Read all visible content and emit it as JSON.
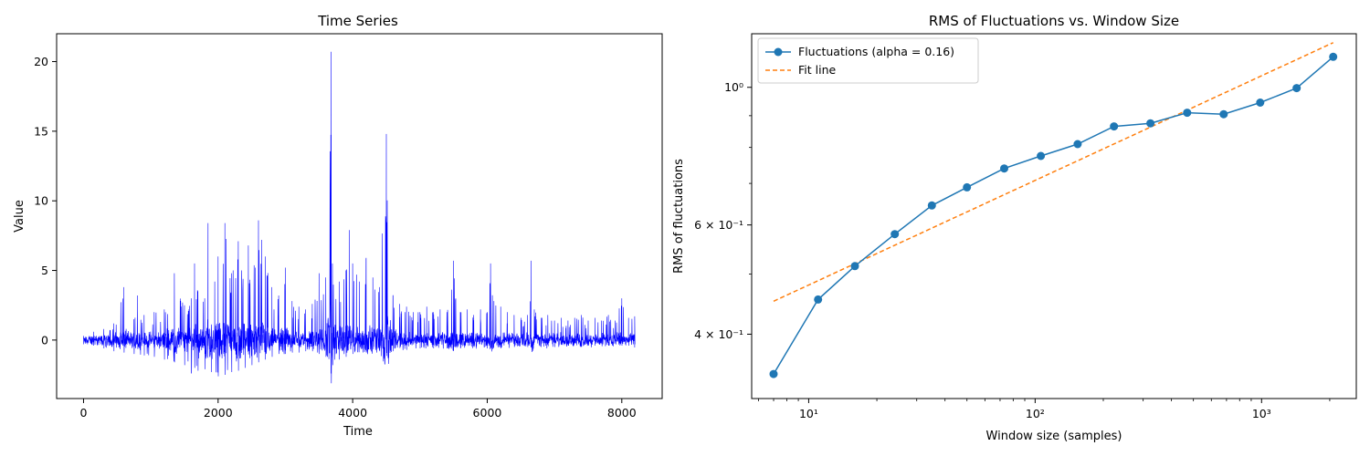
{
  "chart_data": [
    {
      "type": "line",
      "title": "Time Series",
      "xlabel": "Time",
      "ylabel": "Value",
      "xlim": [
        -400,
        8600
      ],
      "ylim": [
        -4.2,
        22
      ],
      "xticks": [
        0,
        2000,
        4000,
        6000,
        8000
      ],
      "yticks": [
        0,
        5,
        10,
        15,
        20
      ],
      "n_points": 8192,
      "color": "#0000ff",
      "series": [
        {
          "x": [
            0,
            150,
            300,
            450,
            600,
            750,
            800,
            900,
            1050,
            1200,
            1350,
            1500,
            1600,
            1650,
            1700,
            1800,
            1850,
            1950,
            2000,
            2100,
            2200,
            2300,
            2350,
            2450,
            2550,
            2600,
            2650,
            2700,
            2800,
            2900,
            3000,
            3100,
            3200,
            3300,
            3400,
            3500,
            3600,
            3680,
            3700,
            3800,
            3900,
            3950,
            4000,
            4100,
            4200,
            4300,
            4400,
            4500,
            4600,
            4700,
            4800,
            4900,
            5000,
            5100,
            5200,
            5300,
            5400,
            5500,
            5600,
            5700,
            5800,
            5900,
            6000,
            6050,
            6100,
            6200,
            6300,
            6400,
            6500,
            6600,
            6650,
            6700,
            6800,
            6900,
            7000,
            7100,
            7200,
            7300,
            7400,
            7500,
            7600,
            7700,
            7800,
            7900,
            8000,
            8100,
            8192
          ],
          "y": [
            0.3,
            0.6,
            0.8,
            1.2,
            3.8,
            1.5,
            3.2,
            1.8,
            2.0,
            2.2,
            4.8,
            2.5,
            3.0,
            5.5,
            3.5,
            3.0,
            8.4,
            4.2,
            6.0,
            8.4,
            4.8,
            7.1,
            5.0,
            6.8,
            5.2,
            8.6,
            7.2,
            6.0,
            3.8,
            3.2,
            5.2,
            2.8,
            2.4,
            2.2,
            2.6,
            4.8,
            4.5,
            20.7,
            5.5,
            4.2,
            5.0,
            7.9,
            5.5,
            4.2,
            5.9,
            4.5,
            3.8,
            14.8,
            3.2,
            2.6,
            2.4,
            2.0,
            2.0,
            2.4,
            2.0,
            2.2,
            2.0,
            5.7,
            2.0,
            2.2,
            1.8,
            2.2,
            2.0,
            5.5,
            2.8,
            2.4,
            2.0,
            1.8,
            1.6,
            1.8,
            5.7,
            2.2,
            1.6,
            1.8,
            1.4,
            1.6,
            1.4,
            1.6,
            1.8,
            1.4,
            1.6,
            1.4,
            1.8,
            1.4,
            3.0,
            1.6,
            1.7
          ]
        },
        {
          "x": [
            0,
            150,
            300,
            450,
            600,
            750,
            900,
            1050,
            1200,
            1350,
            1500,
            1600,
            1650,
            1700,
            1800,
            1900,
            2000,
            2100,
            2200,
            2300,
            2400,
            2500,
            2600,
            2700,
            2800,
            2900,
            3000,
            3100,
            3200,
            3300,
            3400,
            3500,
            3600,
            3680,
            3700,
            3800,
            3900,
            4000,
            4200,
            4400,
            4600,
            4800,
            5000,
            5200,
            5400,
            5600,
            5800,
            6000,
            6200,
            6400,
            6600,
            6800,
            7000,
            7200,
            7400,
            7600,
            7800,
            8000,
            8192
          ],
          "y": [
            -0.3,
            -0.4,
            -0.6,
            -0.8,
            -0.9,
            -1.0,
            -1.1,
            -1.2,
            -1.4,
            -1.6,
            -1.8,
            -2.4,
            -2.0,
            -2.2,
            -2.1,
            -2.3,
            -2.6,
            -2.5,
            -2.3,
            -2.2,
            -2.0,
            -1.8,
            -1.6,
            -1.4,
            -1.2,
            -1.0,
            -1.0,
            -0.9,
            -0.9,
            -0.8,
            -0.8,
            -1.0,
            -1.2,
            -3.1,
            -1.8,
            -1.4,
            -1.2,
            -1.0,
            -0.9,
            -0.8,
            -0.8,
            -0.7,
            -0.6,
            -0.6,
            -0.6,
            -0.6,
            -0.5,
            -0.6,
            -0.6,
            -0.5,
            -0.5,
            -0.5,
            -0.5,
            -0.4,
            -0.5,
            -0.4,
            -0.4,
            -0.4,
            -0.3
          ]
        }
      ]
    },
    {
      "type": "line",
      "title": "RMS of Fluctuations vs. Window Size",
      "xlabel": "Window size (samples)",
      "ylabel": "RMS of fluctuations",
      "xscale": "log",
      "yscale": "log",
      "xlim": [
        5.6,
        2620
      ],
      "ylim": [
        0.315,
        1.22
      ],
      "xticks": [
        10,
        100,
        1000
      ],
      "xtick_labels": [
        "10¹",
        "10²",
        "10³"
      ],
      "yticks": [
        0.4,
        0.6,
        1.0
      ],
      "ytick_labels": [
        "4 × 10⁻¹",
        "6 × 10⁻¹",
        "10⁰"
      ],
      "legend": "top-left",
      "series": [
        {
          "name": "Fluctuations (alpha = 0.16)",
          "color": "#1f77b4",
          "marker": "circle",
          "x": [
            7,
            11,
            16,
            24,
            35,
            50,
            73,
            106,
            154,
            223,
            323,
            469,
            680,
            986,
            1429,
            2071
          ],
          "y": [
            0.345,
            0.455,
            0.515,
            0.58,
            0.645,
            0.69,
            0.74,
            0.775,
            0.81,
            0.865,
            0.875,
            0.91,
            0.905,
            0.945,
            0.997,
            1.12
          ]
        },
        {
          "name": "Fit line",
          "color": "#ff7f0e",
          "style": "dashed",
          "x": [
            7,
            2071
          ],
          "y": [
            0.452,
            1.18
          ]
        }
      ]
    }
  ]
}
